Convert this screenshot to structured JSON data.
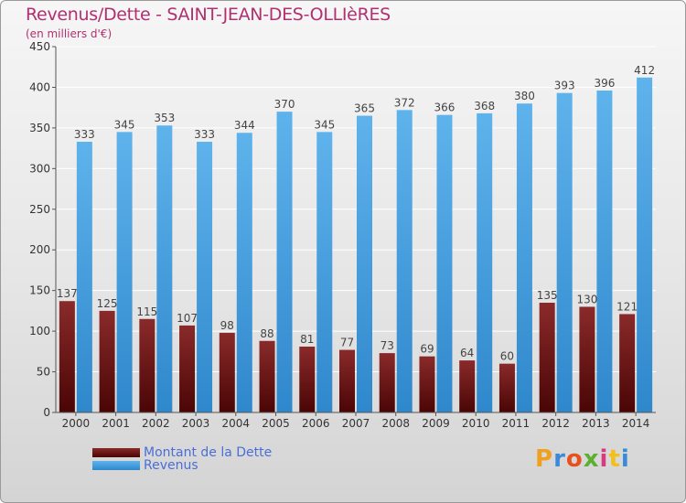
{
  "title": "Revenus/Dette - SAINT-JEAN-DES-OLLIèRES",
  "subtitle": "(en milliers d'€)",
  "logo_text": "Proxiti",
  "colors": {
    "debt_top": "#8a2a2a",
    "debt_bottom": "#4a0505",
    "revenue_light": "#5fb3ec",
    "revenue_dark": "#2f88cc",
    "title": "#b03070",
    "legend_text": "#4a6ed8"
  },
  "chart_data": {
    "type": "bar",
    "title": "Revenus/Dette - SAINT-JEAN-DES-OLLIèRES",
    "subtitle": "(en milliers d'€)",
    "categories": [
      "2000",
      "2001",
      "2002",
      "2003",
      "2004",
      "2005",
      "2006",
      "2007",
      "2008",
      "2009",
      "2010",
      "2011",
      "2012",
      "2013",
      "2014"
    ],
    "series": [
      {
        "name": "Montant de la Dette",
        "values": [
          137,
          125,
          115,
          107,
          98,
          88,
          81,
          77,
          73,
          69,
          64,
          60,
          135,
          130,
          121
        ]
      },
      {
        "name": "Revenus",
        "values": [
          333,
          345,
          353,
          333,
          344,
          370,
          345,
          365,
          372,
          366,
          368,
          380,
          393,
          396,
          412
        ]
      }
    ],
    "ylim": [
      0,
      450
    ],
    "yticks": [
      0,
      50,
      100,
      150,
      200,
      250,
      300,
      350,
      400,
      450
    ],
    "grid": true,
    "legend_position": "bottom-left"
  }
}
